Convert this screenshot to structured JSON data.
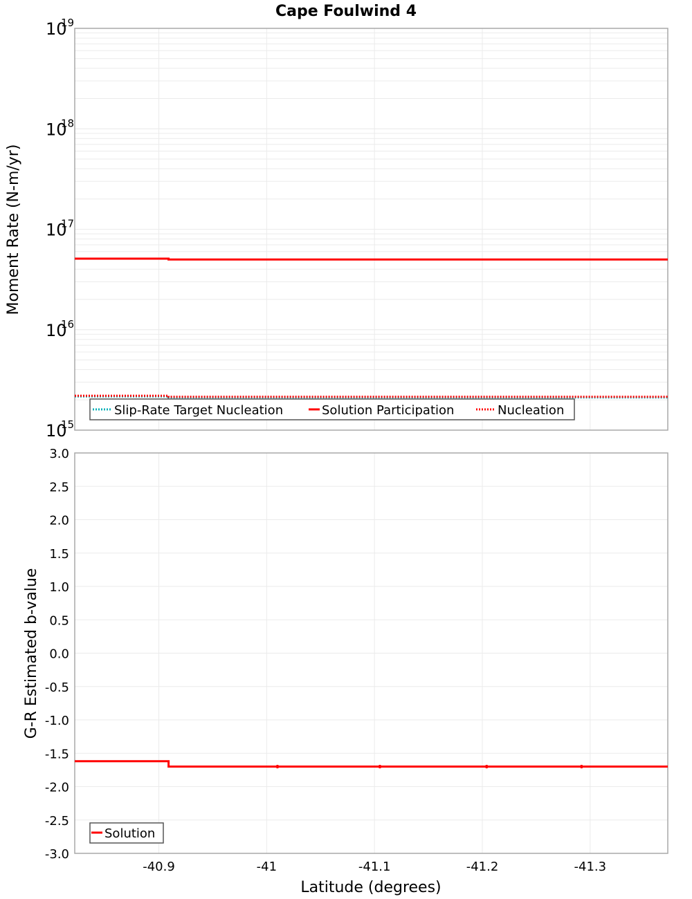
{
  "title": "Cape Foulwind 4",
  "colors": {
    "solution": "#ff0000",
    "target": "#00b0b8",
    "grid": "#ebebeb",
    "frame": "#a8a8a8"
  },
  "chart_data": [
    {
      "type": "line",
      "title": "Cape Foulwind 4",
      "xlabel": "Latitude (degrees)",
      "ylabel": "Moment Rate (N-m/yr)",
      "yscale": "log",
      "xlim": [
        -40.822,
        -41.372
      ],
      "ylim": [
        1000000000000000.0,
        1e+19
      ],
      "ytick_labels": [
        "10^15",
        "10^16",
        "10^17",
        "10^18",
        "10^19"
      ],
      "grid": true,
      "legend_position": "lower left inside",
      "legend": [
        "Slip-Rate Target Nucleation",
        "Solution Participation",
        "Nucleation"
      ],
      "series": [
        {
          "name": "Slip-Rate Target Nucleation",
          "style": "dotted",
          "color": "#00b0b8",
          "x": [
            -40.822,
            -40.909,
            -40.909,
            -41.372
          ],
          "values": [
            2200000000000000.0,
            2200000000000000.0,
            2150000000000000.0,
            2150000000000000.0
          ]
        },
        {
          "name": "Solution Participation",
          "style": "solid",
          "color": "#ff0000",
          "x": [
            -40.822,
            -40.909,
            -40.909,
            -41.372
          ],
          "values": [
            5.1e+16,
            5.1e+16,
            5e+16,
            5e+16
          ]
        },
        {
          "name": "Nucleation",
          "style": "dotted",
          "color": "#ff0000",
          "x": [
            -40.822,
            -40.909,
            -40.909,
            -41.372
          ],
          "values": [
            2200000000000000.0,
            2200000000000000.0,
            2150000000000000.0,
            2150000000000000.0
          ]
        }
      ]
    },
    {
      "type": "line",
      "title": "",
      "xlabel": "Latitude (degrees)",
      "ylabel": "G-R Estimated b-value",
      "yscale": "linear",
      "xlim": [
        -40.822,
        -41.372
      ],
      "ylim": [
        -3.0,
        3.0
      ],
      "x_ticks": [
        -40.9,
        -41,
        -41.1,
        -41.2,
        -41.3
      ],
      "x_tick_labels": [
        "-40.9",
        "-41",
        "-41.1",
        "-41.2",
        "-41.3"
      ],
      "y_ticks": [
        3.0,
        2.5,
        2.0,
        1.5,
        1.0,
        0.5,
        0.0,
        -0.5,
        -1.0,
        -1.5,
        -2.0,
        -2.5,
        -3.0
      ],
      "y_tick_labels": [
        "3.0",
        "2.5",
        "2.0",
        "1.5",
        "1.0",
        "0.5",
        "0.0",
        "-0.5",
        "-1.0",
        "-1.5",
        "-2.0",
        "-2.5",
        "-3.0"
      ],
      "grid": true,
      "legend_position": "lower left inside",
      "legend": [
        "Solution"
      ],
      "series": [
        {
          "name": "Solution",
          "style": "solid",
          "color": "#ff0000",
          "x": [
            -40.822,
            -40.909,
            -40.909,
            -41.01,
            -41.105,
            -41.204,
            -41.292,
            -41.372
          ],
          "values": [
            -1.62,
            -1.62,
            -1.7,
            -1.7,
            -1.7,
            -1.7,
            -1.7,
            -1.7
          ]
        }
      ]
    }
  ]
}
